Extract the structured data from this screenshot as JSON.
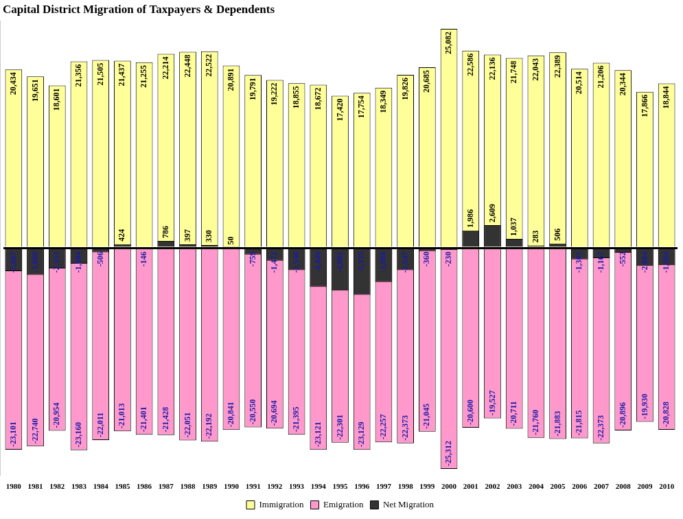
{
  "chart_data": {
    "type": "bar",
    "title": "Capital District Migration of Taxpayers & Dependents",
    "categories": [
      "1980",
      "1981",
      "1982",
      "1983",
      "1984",
      "1985",
      "1986",
      "1987",
      "1988",
      "1989",
      "1990",
      "1991",
      "1992",
      "1993",
      "1994",
      "1995",
      "1996",
      "1997",
      "1998",
      "1999",
      "2000",
      "2001",
      "2002",
      "2003",
      "2004",
      "2005",
      "2006",
      "2007",
      "2008",
      "2009",
      "2010"
    ],
    "series": [
      {
        "name": "Immigration",
        "color": "#ffff99",
        "values": [
          20434,
          19651,
          18601,
          21356,
          21505,
          21437,
          21255,
          22214,
          22448,
          22522,
          20891,
          19791,
          19222,
          18855,
          18672,
          17420,
          17754,
          18349,
          19826,
          20685,
          25082,
          22586,
          22136,
          21748,
          22043,
          22389,
          20514,
          21206,
          20344,
          17866,
          18844
        ],
        "value_labels": [
          "20,434",
          "19,651",
          "18,601",
          "21,356",
          "21,505",
          "21,437",
          "21,255",
          "22,214",
          "22,448",
          "22,522",
          "20,891",
          "19,791",
          "19,222",
          "18,855",
          "18,672",
          "17,420",
          "17,754",
          "18,349",
          "19,826",
          "20,685",
          "25,082",
          "22,586",
          "22,136",
          "21,748",
          "22,043",
          "22,389",
          "20,514",
          "21,206",
          "20,344",
          "17,866",
          "18,844"
        ]
      },
      {
        "name": "Emigration",
        "color": "#ff99cc",
        "values": [
          -23101,
          -22740,
          -20954,
          -23160,
          -22011,
          -21013,
          -21401,
          -21428,
          -22051,
          -22192,
          -20841,
          -20550,
          -20694,
          -21395,
          -23121,
          -22301,
          -23129,
          -22257,
          -22373,
          -21045,
          -25312,
          -20600,
          -19527,
          -20711,
          -21760,
          -21883,
          -21815,
          -22373,
          -20896,
          -19930,
          -20828
        ],
        "value_labels": [
          "-23,101",
          "-22,740",
          "-20,954",
          "-23,160",
          "-22,011",
          "-21,013",
          "-21,401",
          "-21,428",
          "-22,051",
          "-22,192",
          "-20,841",
          "-20,550",
          "-20,694",
          "-21,395",
          "-23,121",
          "-22,301",
          "-23,129",
          "-22,257",
          "-22,373",
          "-21,045",
          "-25,312",
          "-20,600",
          "-19,527",
          "-20,711",
          "-21,760",
          "-21,883",
          "-21,815",
          "-22,373",
          "-20,896",
          "-19,930",
          "-20,828"
        ]
      },
      {
        "name": "Net Migration",
        "color": "#333333",
        "values": [
          -2667,
          -3089,
          -2353,
          -1804,
          -506,
          424,
          -146,
          786,
          397,
          330,
          50,
          -759,
          -1472,
          -2540,
          -4449,
          -4881,
          -5375,
          -3908,
          -2547,
          -360,
          -230,
          1986,
          2609,
          1037,
          283,
          506,
          -1301,
          -1167,
          -552,
          -2064,
          -1984
        ],
        "value_labels": [
          "-2,667",
          "-3,089",
          "-2,353",
          "-1,804",
          "-506",
          "424",
          "-146",
          "786",
          "397",
          "330",
          "50",
          "-759",
          "-1,472",
          "-2,540",
          "-4,449",
          "-4,881",
          "-5,375",
          "-3,908",
          "-2,547",
          "-360",
          "-230",
          "1,986",
          "2,609",
          "1,037",
          "283",
          "506",
          "-1,301",
          "-1,167",
          "-552",
          "-2,064",
          "-1,984"
        ]
      }
    ],
    "ylim": [
      -26000,
      26000
    ],
    "yticks": [
      0
    ],
    "grid": true,
    "tick_labels": "x",
    "legend": "bottom",
    "data_labels": true
  }
}
